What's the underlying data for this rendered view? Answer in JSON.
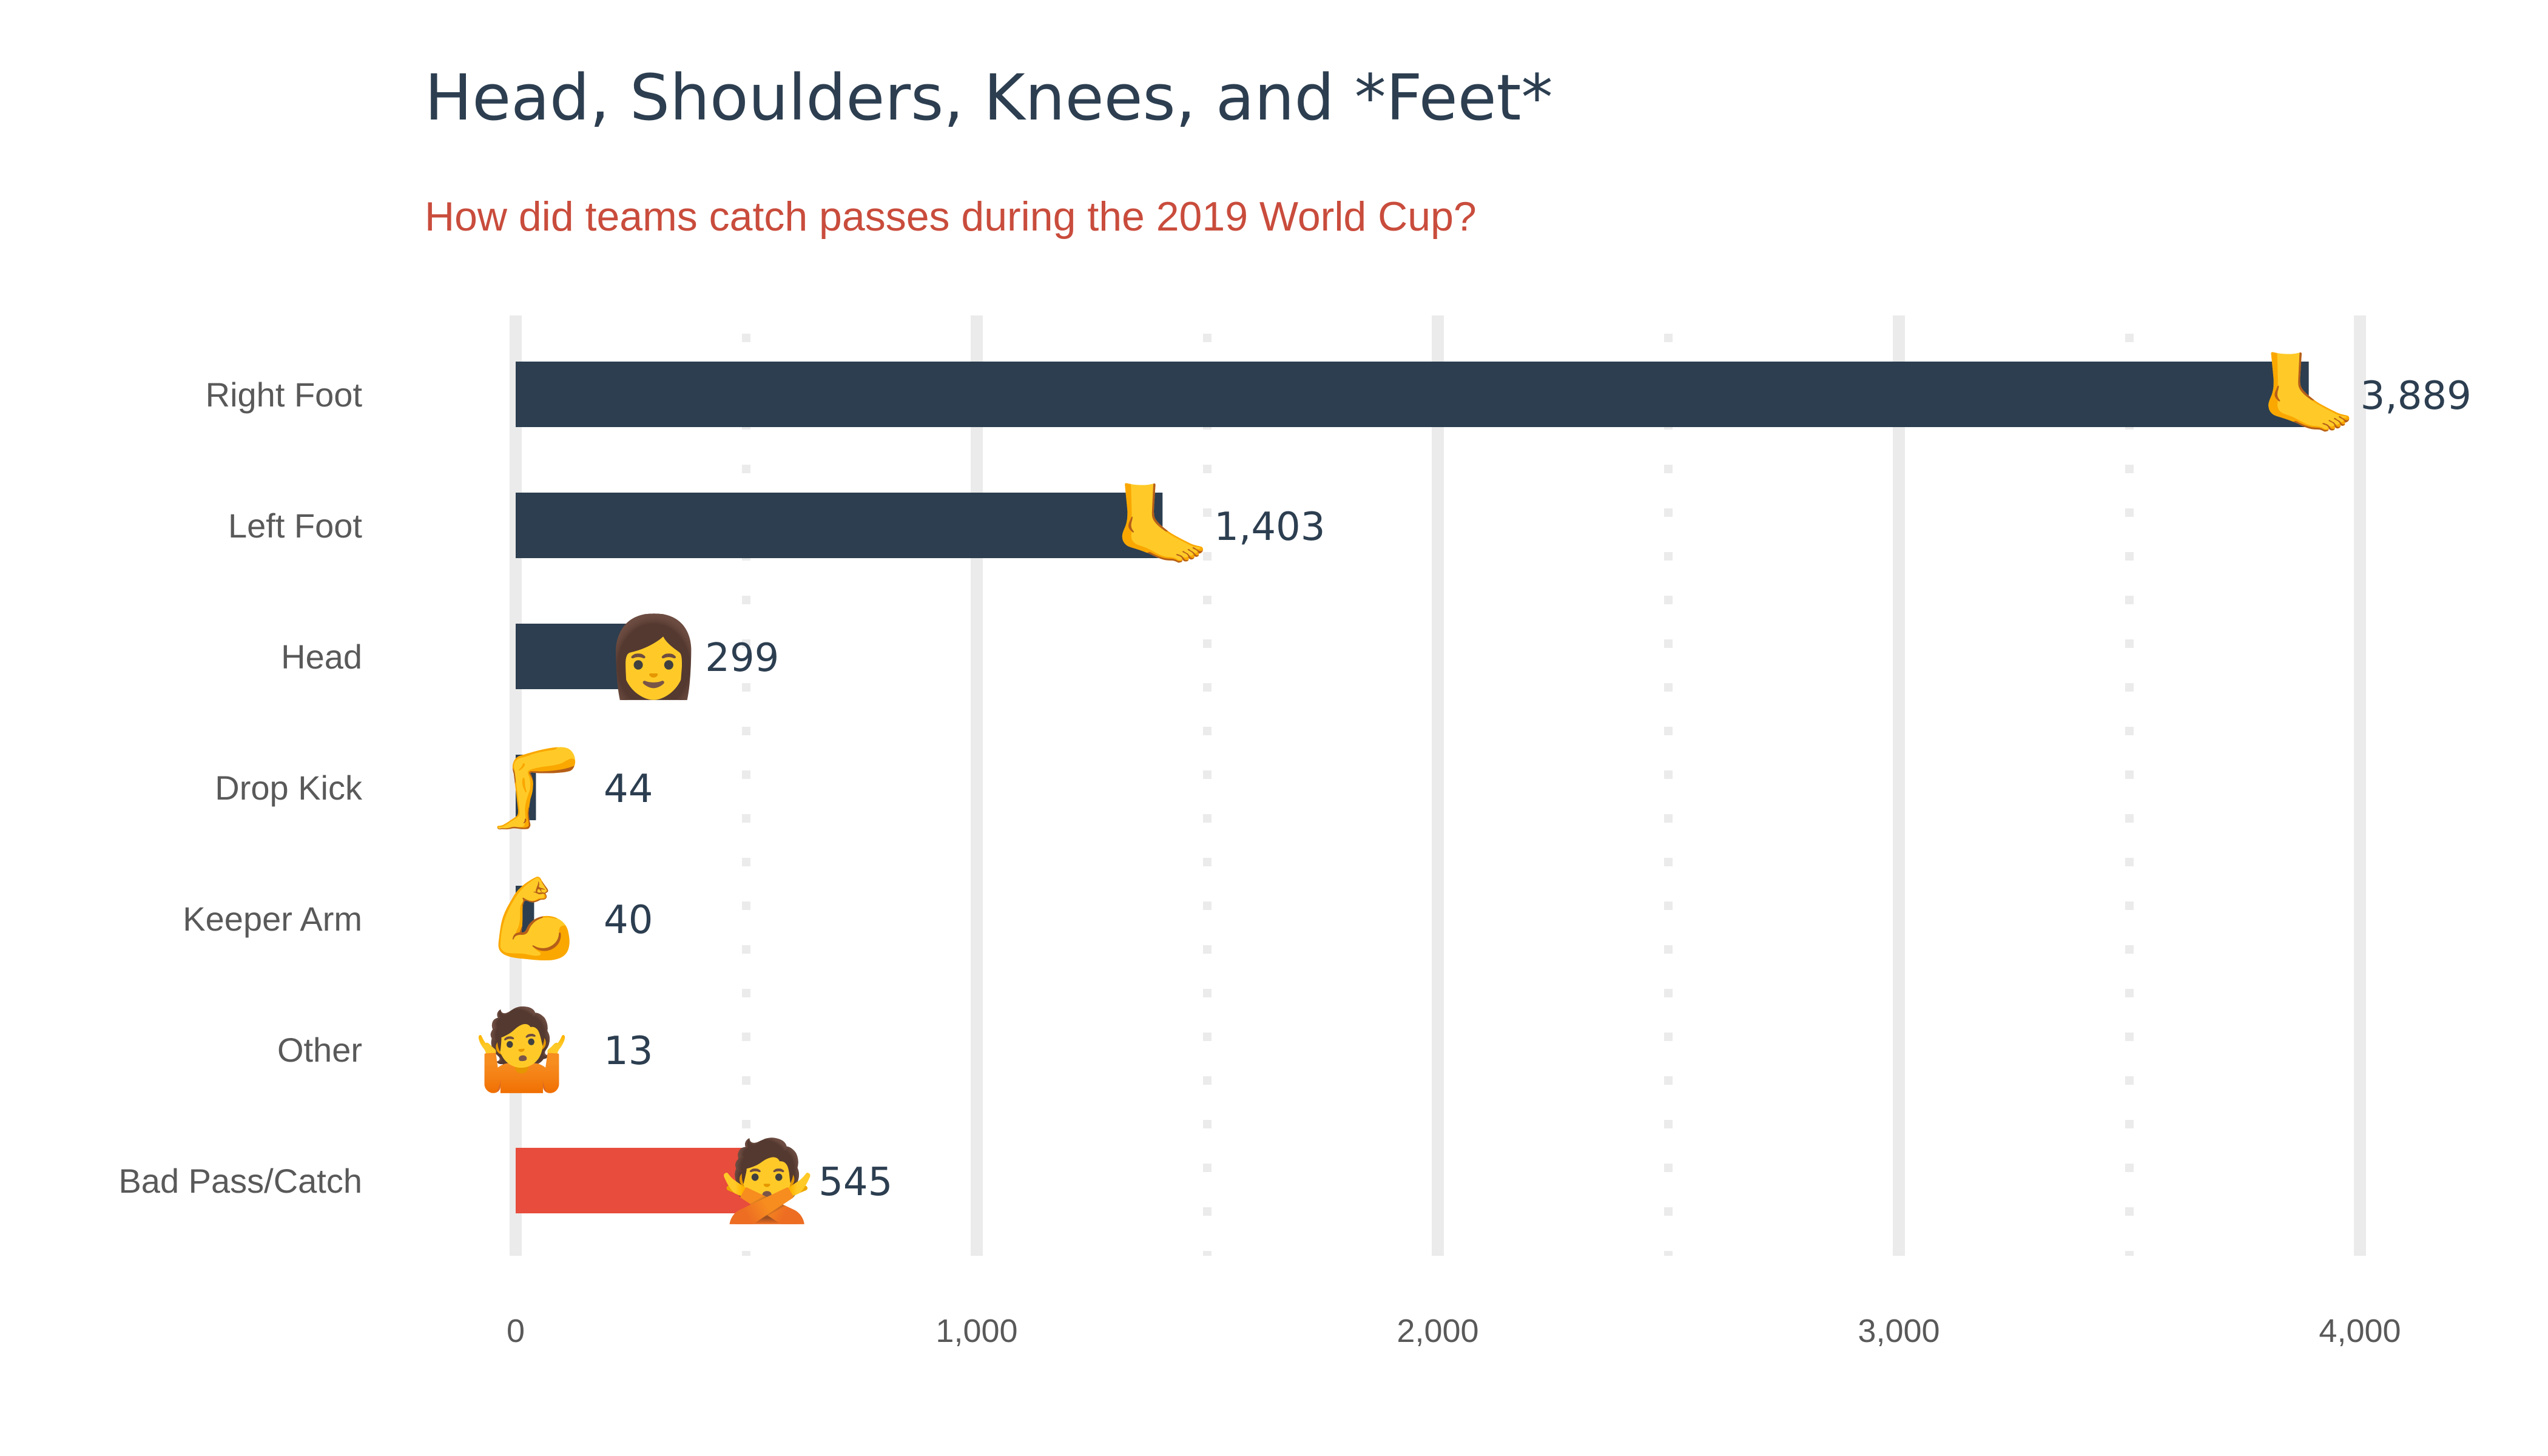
{
  "chart_data": {
    "type": "bar",
    "orientation": "horizontal",
    "title": "Head, Shoulders, Knees, and *Feet*",
    "subtitle": "How did teams catch passes during the 2019 World Cup?",
    "xlabel": "",
    "ylabel": "",
    "categories": [
      "Right Foot",
      "Left Foot",
      "Head",
      "Drop Kick",
      "Keeper Arm",
      "Other",
      "Bad Pass/Catch"
    ],
    "values": [
      3889,
      1403,
      299,
      44,
      40,
      13,
      545
    ],
    "value_labels": [
      "3,889",
      "1,403",
      "299",
      "44",
      "40",
      "13",
      "545"
    ],
    "emoji": [
      "🦶",
      "🦶",
      "👩",
      "🦵",
      "💪",
      "🤷",
      "🙅"
    ],
    "bar_colors": [
      "#2c3e50",
      "#2c3e50",
      "#2c3e50",
      "#2c3e50",
      "#2c3e50",
      "#2c3e50",
      "#e74c3c"
    ],
    "xlim": [
      0,
      4000
    ],
    "x_ticks": [
      0,
      1000,
      2000,
      3000,
      4000
    ],
    "x_tick_labels": [
      "0",
      "1,000",
      "2,000",
      "3,000",
      "4,000"
    ],
    "grid": true,
    "legend": "none"
  },
  "colors": {
    "title": "#2c3e50",
    "subtitle": "#c94c3c",
    "bar": "#2c3e50",
    "bar_highlight": "#e74c3c",
    "grid": "#ebebeb",
    "labels": "#595959"
  }
}
